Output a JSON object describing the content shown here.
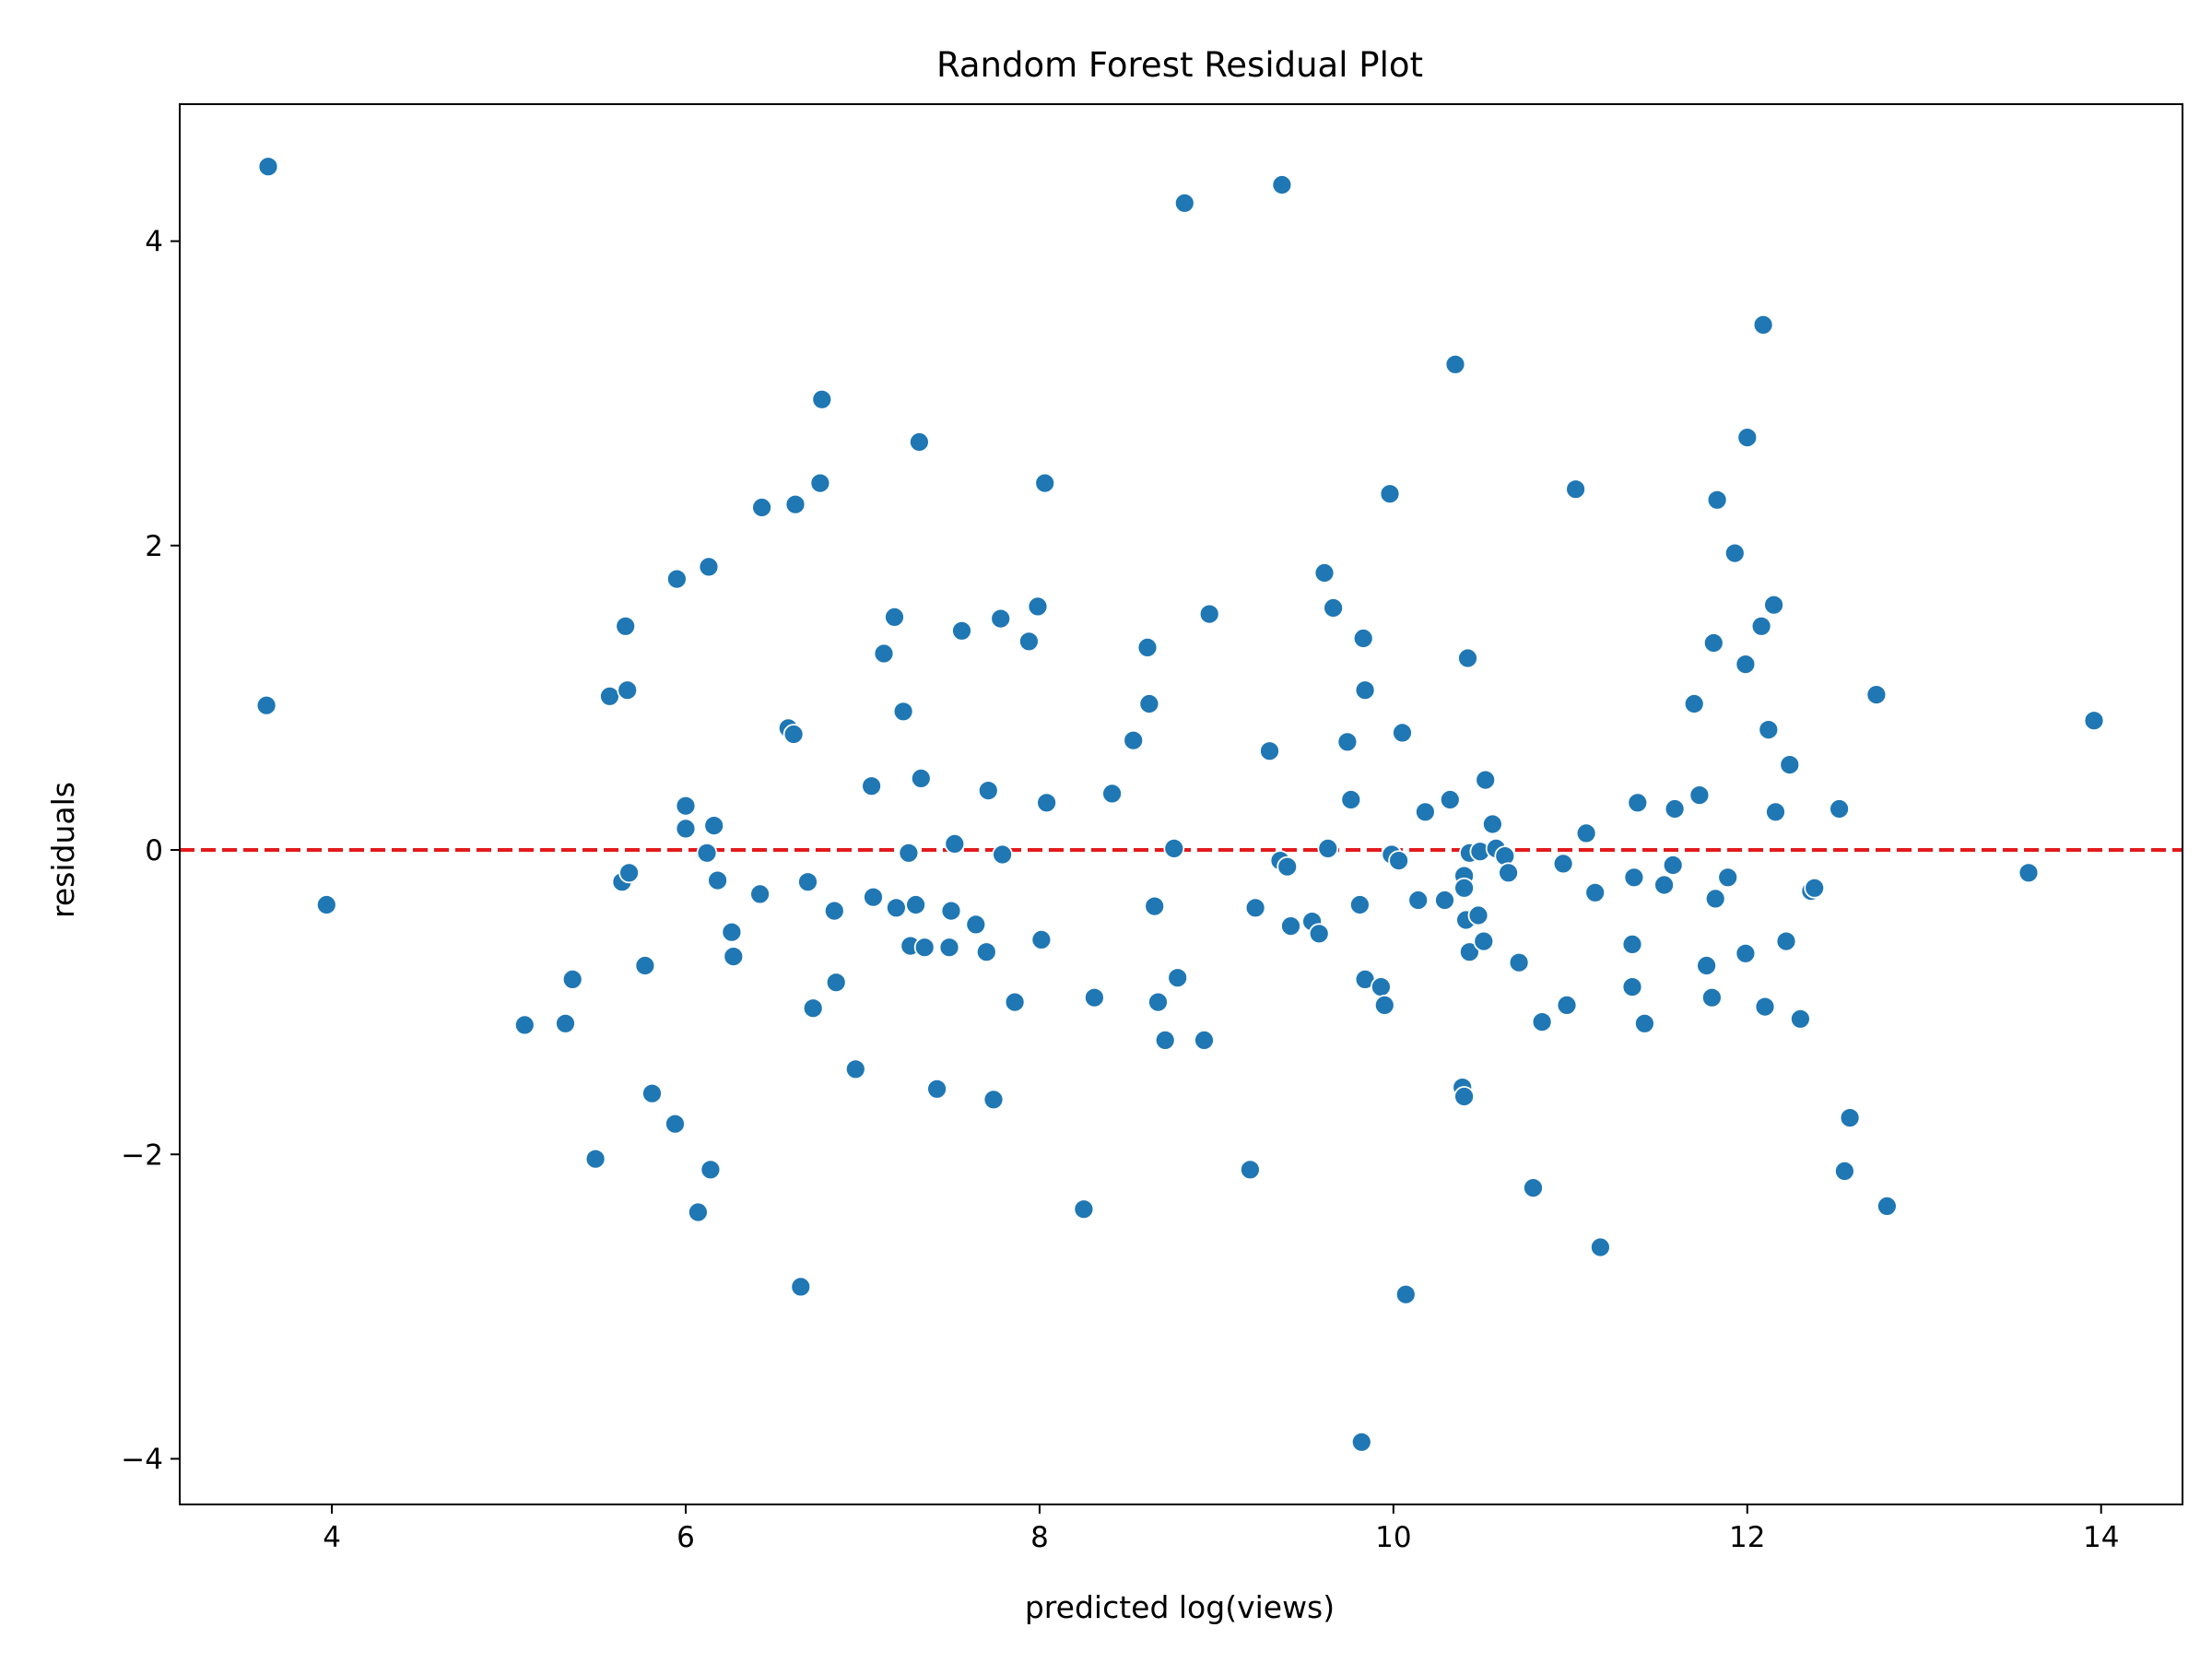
{
  "chart_data": {
    "type": "scatter",
    "title": "Random Forest Residual Plot",
    "xlabel": "predicted log(views)",
    "ylabel": "residuals",
    "xlim": [
      3.14,
      14.46
    ],
    "ylim": [
      -4.3,
      4.9
    ],
    "xticks": [
      4,
      6,
      8,
      10,
      12,
      14
    ],
    "yticks": [
      -4,
      -2,
      0,
      2,
      4
    ],
    "grid": false,
    "legend": "none",
    "reference_line": {
      "y": 0,
      "color": "#e31a1c",
      "style": "dashed"
    },
    "marker_color": "#1f77b4",
    "points": [
      [
        3.64,
        4.49
      ],
      [
        3.63,
        0.95
      ],
      [
        3.97,
        -0.36
      ],
      [
        5.09,
        -1.15
      ],
      [
        5.32,
        -1.14
      ],
      [
        5.36,
        -0.85
      ],
      [
        5.49,
        -2.03
      ],
      [
        5.57,
        1.01
      ],
      [
        5.64,
        -0.21
      ],
      [
        5.66,
        1.47
      ],
      [
        5.67,
        1.05
      ],
      [
        5.68,
        -0.15
      ],
      [
        5.77,
        -0.76
      ],
      [
        5.81,
        -1.6
      ],
      [
        5.94,
        -1.8
      ],
      [
        5.95,
        1.78
      ],
      [
        6.0,
        0.29
      ],
      [
        6.0,
        0.14
      ],
      [
        6.07,
        -2.38
      ],
      [
        6.12,
        -0.02
      ],
      [
        6.13,
        1.86
      ],
      [
        6.14,
        -2.1
      ],
      [
        6.16,
        0.16
      ],
      [
        6.18,
        -0.2
      ],
      [
        6.26,
        -0.54
      ],
      [
        6.27,
        -0.7
      ],
      [
        6.42,
        -0.29
      ],
      [
        6.43,
        2.25
      ],
      [
        6.58,
        0.8
      ],
      [
        6.61,
        0.76
      ],
      [
        6.62,
        2.27
      ],
      [
        6.65,
        -2.87
      ],
      [
        6.69,
        -0.21
      ],
      [
        6.72,
        -1.04
      ],
      [
        6.76,
        2.41
      ],
      [
        6.77,
        2.96
      ],
      [
        6.84,
        -0.4
      ],
      [
        6.85,
        -0.87
      ],
      [
        6.96,
        -1.44
      ],
      [
        7.05,
        0.42
      ],
      [
        7.06,
        -0.31
      ],
      [
        7.12,
        1.29
      ],
      [
        7.18,
        1.53
      ],
      [
        7.19,
        -0.38
      ],
      [
        7.23,
        0.91
      ],
      [
        7.26,
        -0.02
      ],
      [
        7.27,
        -0.63
      ],
      [
        7.3,
        -0.36
      ],
      [
        7.32,
        2.68
      ],
      [
        7.33,
        0.47
      ],
      [
        7.35,
        -0.64
      ],
      [
        7.42,
        -1.57
      ],
      [
        7.49,
        -0.64
      ],
      [
        7.5,
        -0.4
      ],
      [
        7.52,
        0.04
      ],
      [
        7.56,
        1.44
      ],
      [
        7.64,
        -0.49
      ],
      [
        7.7,
        -0.67
      ],
      [
        7.71,
        0.39
      ],
      [
        7.74,
        -1.64
      ],
      [
        7.78,
        1.52
      ],
      [
        7.79,
        -0.03
      ],
      [
        7.86,
        -1.0
      ],
      [
        7.94,
        1.37
      ],
      [
        7.99,
        1.6
      ],
      [
        8.01,
        -0.59
      ],
      [
        8.03,
        2.41
      ],
      [
        8.04,
        0.31
      ],
      [
        8.25,
        -2.36
      ],
      [
        8.31,
        -0.97
      ],
      [
        8.41,
        0.37
      ],
      [
        8.53,
        0.72
      ],
      [
        8.61,
        1.33
      ],
      [
        8.62,
        0.96
      ],
      [
        8.65,
        -0.37
      ],
      [
        8.67,
        -1.0
      ],
      [
        8.71,
        -1.25
      ],
      [
        8.76,
        0.01
      ],
      [
        8.78,
        -0.84
      ],
      [
        8.82,
        4.25
      ],
      [
        8.93,
        -1.25
      ],
      [
        8.96,
        1.55
      ],
      [
        9.19,
        -2.1
      ],
      [
        9.22,
        -0.38
      ],
      [
        9.3,
        0.65
      ],
      [
        9.36,
        -0.07
      ],
      [
        9.37,
        4.37
      ],
      [
        9.4,
        -0.11
      ],
      [
        9.42,
        -0.5
      ],
      [
        9.54,
        -0.47
      ],
      [
        9.58,
        -0.55
      ],
      [
        9.61,
        1.82
      ],
      [
        9.63,
        0.01
      ],
      [
        9.66,
        1.59
      ],
      [
        9.74,
        0.71
      ],
      [
        9.76,
        0.33
      ],
      [
        9.81,
        -0.36
      ],
      [
        9.82,
        -3.89
      ],
      [
        9.83,
        1.39
      ],
      [
        9.84,
        1.05
      ],
      [
        9.84,
        -0.85
      ],
      [
        9.93,
        -0.9
      ],
      [
        9.95,
        -1.02
      ],
      [
        9.98,
        2.34
      ],
      [
        9.99,
        -0.03
      ],
      [
        10.03,
        -0.07
      ],
      [
        10.05,
        0.77
      ],
      [
        10.07,
        -2.92
      ],
      [
        10.14,
        -0.33
      ],
      [
        10.18,
        0.25
      ],
      [
        10.29,
        -0.33
      ],
      [
        10.32,
        0.33
      ],
      [
        10.35,
        3.19
      ],
      [
        10.39,
        -1.56
      ],
      [
        10.4,
        -1.62
      ],
      [
        10.4,
        -0.17
      ],
      [
        10.4,
        -0.25
      ],
      [
        10.41,
        -0.46
      ],
      [
        10.42,
        1.26
      ],
      [
        10.43,
        -0.02
      ],
      [
        10.43,
        -0.67
      ],
      [
        10.48,
        -0.43
      ],
      [
        10.49,
        -0.01
      ],
      [
        10.51,
        -0.6
      ],
      [
        10.52,
        0.46
      ],
      [
        10.56,
        0.17
      ],
      [
        10.58,
        0.01
      ],
      [
        10.63,
        -0.04
      ],
      [
        10.65,
        -0.15
      ],
      [
        10.71,
        -0.74
      ],
      [
        10.79,
        -2.22
      ],
      [
        10.84,
        -1.13
      ],
      [
        10.96,
        -0.09
      ],
      [
        10.98,
        -1.02
      ],
      [
        11.03,
        2.37
      ],
      [
        11.09,
        0.11
      ],
      [
        11.14,
        -0.28
      ],
      [
        11.17,
        -2.61
      ],
      [
        11.35,
        -0.62
      ],
      [
        11.35,
        -0.9
      ],
      [
        11.36,
        -0.18
      ],
      [
        11.38,
        0.31
      ],
      [
        11.42,
        -1.14
      ],
      [
        11.53,
        -0.23
      ],
      [
        11.58,
        -0.1
      ],
      [
        11.59,
        0.27
      ],
      [
        11.7,
        0.96
      ],
      [
        11.73,
        0.36
      ],
      [
        11.77,
        -0.76
      ],
      [
        11.8,
        -0.97
      ],
      [
        11.81,
        1.36
      ],
      [
        11.82,
        -0.32
      ],
      [
        11.83,
        2.3
      ],
      [
        11.89,
        -0.18
      ],
      [
        11.93,
        1.95
      ],
      [
        11.99,
        1.22
      ],
      [
        11.99,
        -0.68
      ],
      [
        12.0,
        2.71
      ],
      [
        12.08,
        1.47
      ],
      [
        12.09,
        3.45
      ],
      [
        12.1,
        -1.03
      ],
      [
        12.12,
        0.79
      ],
      [
        12.15,
        1.61
      ],
      [
        12.16,
        0.25
      ],
      [
        12.22,
        -0.6
      ],
      [
        12.24,
        0.56
      ],
      [
        12.3,
        -1.11
      ],
      [
        12.36,
        -0.27
      ],
      [
        12.38,
        -0.25
      ],
      [
        12.52,
        0.27
      ],
      [
        12.55,
        -2.11
      ],
      [
        12.58,
        -1.76
      ],
      [
        12.73,
        1.02
      ],
      [
        12.79,
        -2.34
      ],
      [
        13.59,
        -0.15
      ],
      [
        13.96,
        0.85
      ]
    ]
  }
}
